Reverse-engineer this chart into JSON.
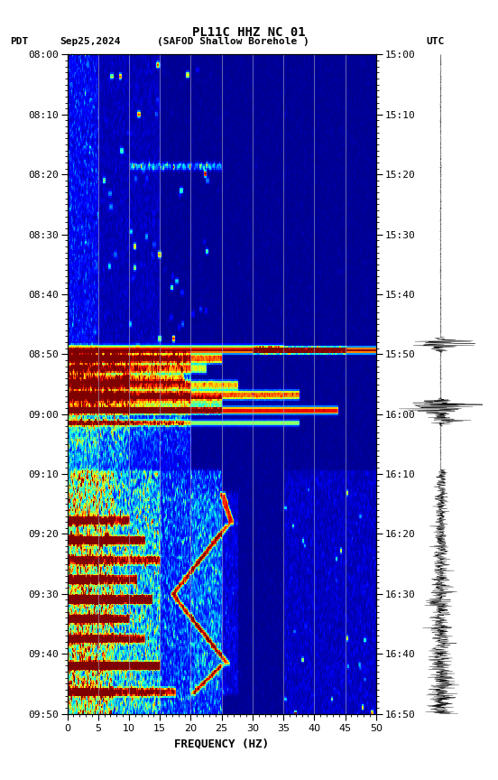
{
  "title_line1": "PL11C HHZ NC 01",
  "xlabel": "FREQUENCY (HZ)",
  "pdt_ticks": [
    "08:00",
    "08:10",
    "08:20",
    "08:30",
    "08:40",
    "08:50",
    "09:00",
    "09:10",
    "09:20",
    "09:30",
    "09:40",
    "09:50"
  ],
  "utc_ticks": [
    "15:00",
    "15:10",
    "15:20",
    "15:30",
    "15:40",
    "15:50",
    "16:00",
    "16:10",
    "16:20",
    "16:30",
    "16:40",
    "16:50"
  ],
  "vertical_lines_hz": [
    5,
    10,
    15,
    20,
    25,
    30,
    35,
    40,
    45
  ],
  "xticks": [
    0,
    5,
    10,
    15,
    20,
    25,
    30,
    35,
    40,
    45,
    50
  ],
  "fig_bg": "#ffffff",
  "pdt_label": "PDT",
  "utc_label": "UTC",
  "date_label": "Sep25,2024",
  "station_label": "(SAFOD Shallow Borehole )"
}
